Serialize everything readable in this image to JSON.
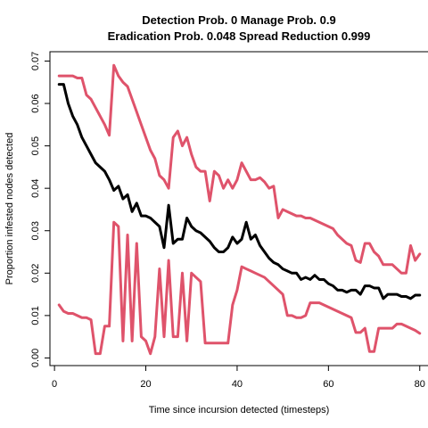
{
  "chart_data": {
    "type": "line",
    "title_line1": "Detection Prob. 0 Manage Prob. 0.9",
    "title_line2": "Eradication Prob. 0.048 Spread Reduction 0.999",
    "xlabel": "Time since incursion detected (timesteps)",
    "ylabel": "Proportion infested nodes detected",
    "xlim": [
      -1,
      82
    ],
    "ylim": [
      -0.0018,
      0.0722
    ],
    "x_ticks": [
      0,
      20,
      40,
      60,
      80
    ],
    "x_tick_labels": [
      "0",
      "20",
      "40",
      "60",
      "80"
    ],
    "y_ticks": [
      0.0,
      0.01,
      0.02,
      0.03,
      0.04,
      0.05,
      0.06,
      0.07
    ],
    "y_tick_labels": [
      "0.00",
      "0.01",
      "0.02",
      "0.03",
      "0.04",
      "0.05",
      "0.06",
      "0.07"
    ],
    "series": [
      {
        "color": "#000000",
        "x": [
          1,
          2,
          3,
          4,
          5,
          6,
          7,
          8,
          9,
          10,
          11,
          12,
          13,
          14,
          15,
          16,
          17,
          18,
          19,
          20,
          21,
          22,
          23,
          24,
          25,
          26,
          27,
          28,
          29,
          30,
          31,
          32,
          33,
          34,
          35,
          36,
          37,
          38,
          39,
          40,
          41,
          42,
          43,
          44,
          45,
          46,
          47,
          48,
          49,
          50,
          51,
          52,
          53,
          54,
          55,
          56,
          57,
          58,
          59,
          60,
          61,
          62,
          63,
          64,
          65,
          66,
          67,
          68,
          69,
          70,
          71,
          72,
          73,
          74,
          75,
          76,
          77,
          78,
          79,
          80
        ],
        "y": [
          0.0645,
          0.0645,
          0.06,
          0.057,
          0.055,
          0.052,
          0.05,
          0.048,
          0.046,
          0.045,
          0.044,
          0.042,
          0.0395,
          0.0405,
          0.0375,
          0.0385,
          0.0345,
          0.0365,
          0.0335,
          0.0335,
          0.033,
          0.032,
          0.031,
          0.026,
          0.036,
          0.027,
          0.028,
          0.028,
          0.033,
          0.031,
          0.03,
          0.0295,
          0.0285,
          0.0275,
          0.026,
          0.025,
          0.025,
          0.026,
          0.0285,
          0.027,
          0.028,
          0.032,
          0.028,
          0.029,
          0.0265,
          0.025,
          0.0235,
          0.0225,
          0.022,
          0.021,
          0.0205,
          0.02,
          0.02,
          0.0185,
          0.019,
          0.0185,
          0.0195,
          0.0185,
          0.0185,
          0.0175,
          0.017,
          0.016,
          0.016,
          0.0155,
          0.016,
          0.016,
          0.015,
          0.017,
          0.017,
          0.0165,
          0.0165,
          0.014,
          0.015,
          0.015,
          0.015,
          0.0145,
          0.0145,
          0.014,
          0.0148,
          0.0148
        ]
      },
      {
        "color": "#DF536B",
        "x": [
          1,
          2,
          3,
          4,
          5,
          6,
          7,
          8,
          9,
          10,
          11,
          12,
          13,
          14,
          15,
          16,
          17,
          18,
          19,
          20,
          21,
          22,
          23,
          24,
          25,
          26,
          27,
          28,
          29,
          30,
          31,
          32,
          33,
          34,
          35,
          36,
          37,
          38,
          39,
          40,
          41,
          42,
          43,
          44,
          45,
          46,
          47,
          48,
          49,
          50,
          51,
          52,
          53,
          54,
          55,
          56,
          57,
          58,
          59,
          60,
          61,
          62,
          63,
          64,
          65,
          66,
          67,
          68,
          69,
          70,
          71,
          72,
          73,
          74,
          75,
          76,
          77,
          78,
          79,
          80
        ],
        "y": [
          0.0665,
          0.0665,
          0.0665,
          0.0665,
          0.066,
          0.066,
          0.062,
          0.061,
          0.059,
          0.057,
          0.055,
          0.0525,
          0.069,
          0.0665,
          0.065,
          0.064,
          0.061,
          0.058,
          0.055,
          0.052,
          0.049,
          0.047,
          0.043,
          0.042,
          0.04,
          0.052,
          0.0535,
          0.05,
          0.052,
          0.048,
          0.045,
          0.044,
          0.044,
          0.037,
          0.044,
          0.043,
          0.04,
          0.042,
          0.04,
          0.042,
          0.046,
          0.044,
          0.042,
          0.042,
          0.0425,
          0.0415,
          0.04,
          0.0405,
          0.033,
          0.035,
          0.0345,
          0.034,
          0.0335,
          0.0335,
          0.033,
          0.033,
          0.0325,
          0.032,
          0.0315,
          0.031,
          0.0305,
          0.029,
          0.028,
          0.027,
          0.0265,
          0.023,
          0.0225,
          0.027,
          0.027,
          0.025,
          0.024,
          0.022,
          0.022,
          0.022,
          0.021,
          0.02,
          0.02,
          0.0265,
          0.023,
          0.0245
        ]
      },
      {
        "color": "#DF536B",
        "x": [
          1,
          2,
          3,
          4,
          5,
          6,
          7,
          8,
          9,
          10,
          11,
          12,
          13,
          14,
          15,
          16,
          17,
          18,
          19,
          20,
          21,
          22,
          23,
          24,
          25,
          26,
          27,
          28,
          29,
          30,
          31,
          32,
          33,
          34,
          35,
          36,
          37,
          38,
          39,
          40,
          41,
          42,
          43,
          44,
          45,
          46,
          47,
          48,
          49,
          50,
          51,
          52,
          53,
          54,
          55,
          56,
          57,
          58,
          59,
          60,
          61,
          62,
          63,
          64,
          65,
          66,
          67,
          68,
          69,
          70,
          71,
          72,
          73,
          74,
          75,
          76,
          77,
          78,
          79,
          80
        ],
        "y": [
          0.0125,
          0.011,
          0.0105,
          0.0105,
          0.01,
          0.0095,
          0.0095,
          0.009,
          0.001,
          0.001,
          0.0075,
          0.0075,
          0.032,
          0.031,
          0.004,
          0.029,
          0.004,
          0.027,
          0.005,
          0.004,
          0.001,
          0.005,
          0.021,
          0.005,
          0.023,
          0.005,
          0.005,
          0.02,
          0.004,
          0.02,
          0.019,
          0.018,
          0.0035,
          0.0035,
          0.0035,
          0.0035,
          0.0035,
          0.0035,
          0.0125,
          0.016,
          0.0215,
          0.021,
          0.0205,
          0.02,
          0.0195,
          0.019,
          0.018,
          0.017,
          0.016,
          0.015,
          0.01,
          0.01,
          0.0095,
          0.0095,
          0.01,
          0.013,
          0.013,
          0.013,
          0.0125,
          0.012,
          0.0115,
          0.011,
          0.0105,
          0.01,
          0.0095,
          0.006,
          0.006,
          0.007,
          0.0015,
          0.0015,
          0.007,
          0.007,
          0.007,
          0.007,
          0.008,
          0.008,
          0.0075,
          0.007,
          0.0065,
          0.0058
        ]
      }
    ]
  }
}
